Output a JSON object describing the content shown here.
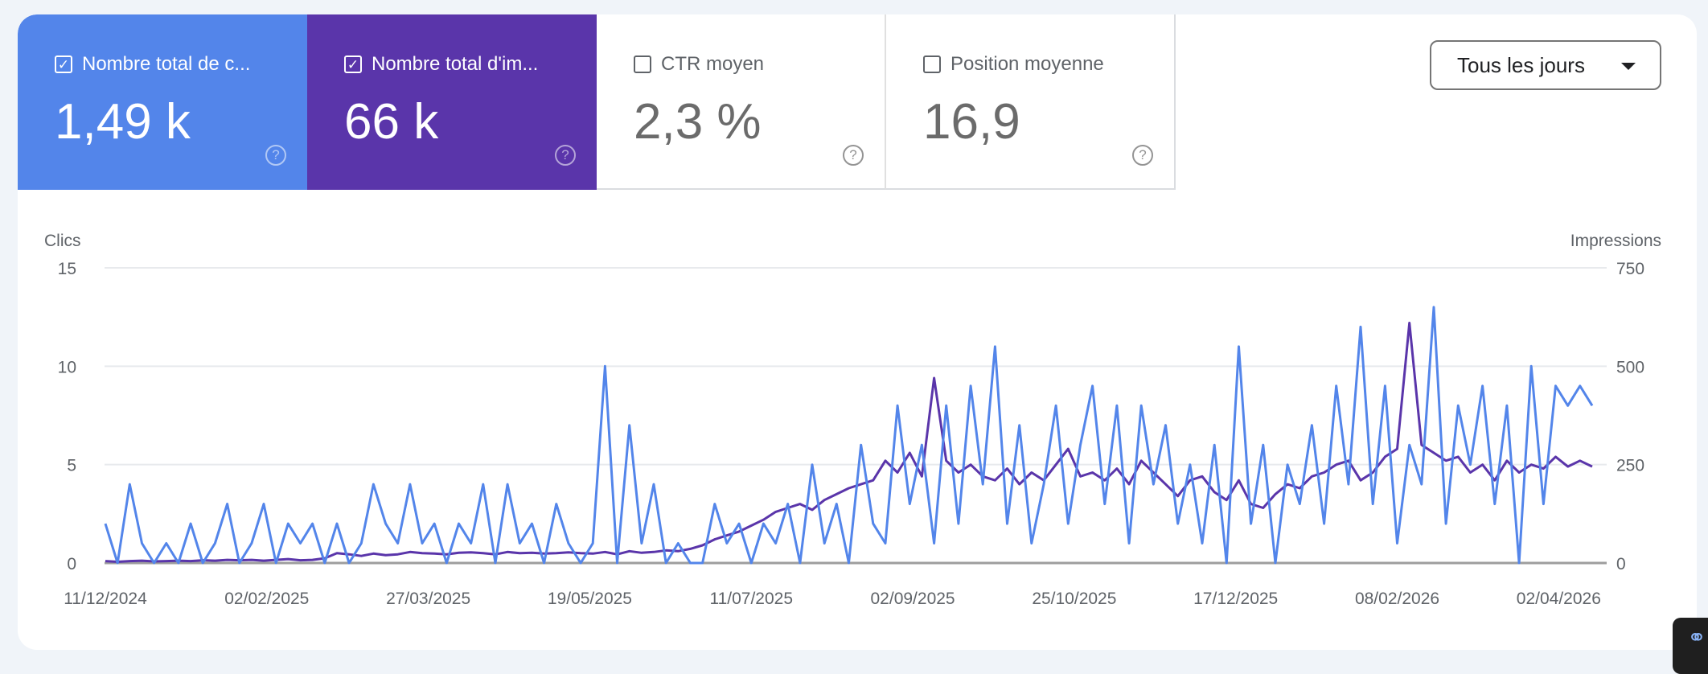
{
  "metrics": [
    {
      "label": "Nombre total de c...",
      "value": "1,49 k",
      "checked": true,
      "color": "#5385ea"
    },
    {
      "label": "Nombre total d'im...",
      "value": "66 k",
      "checked": true,
      "color": "#5a35aa"
    },
    {
      "label": "CTR moyen",
      "value": "2,3 %",
      "checked": false
    },
    {
      "label": "Position moyenne",
      "value": "16,9",
      "checked": false
    }
  ],
  "icons": {
    "checkbox_checked": "checkbox-checked-icon",
    "checkbox": "checkbox-empty-icon",
    "help": "help-circle-icon",
    "dropdown": "caret-down-icon",
    "widget": "link-icon"
  },
  "date_filter": {
    "selected": "Tous les jours"
  },
  "chart_data": {
    "type": "line",
    "ylabel_left": "Clics",
    "ylabel_right": "Impressions",
    "ylim_left": [
      0,
      15
    ],
    "ylim_right": [
      0,
      750
    ],
    "yticks_left": [
      "0",
      "5",
      "10",
      "15"
    ],
    "yticks_right": [
      "0",
      "250",
      "500",
      "750"
    ],
    "xticks": [
      "11/12/2024",
      "02/02/2025",
      "27/03/2025",
      "19/05/2025",
      "11/07/2025",
      "02/09/2025",
      "25/10/2025",
      "17/12/2025",
      "08/02/2026",
      "02/04/2026"
    ],
    "xlim": [
      "11/12/2024",
      "13/04/2026"
    ],
    "grid": true,
    "legend": "none",
    "x": [
      "11/12/2024",
      "15/12/2024",
      "19/12/2024",
      "23/12/2024",
      "27/12/2024",
      "31/12/2024",
      "04/01/2025",
      "08/01/2025",
      "12/01/2025",
      "16/01/2025",
      "20/01/2025",
      "24/01/2025",
      "28/01/2025",
      "01/02/2025",
      "05/02/2025",
      "09/02/2025",
      "13/02/2025",
      "17/02/2025",
      "21/02/2025",
      "25/02/2025",
      "01/03/2025",
      "05/03/2025",
      "09/03/2025",
      "13/03/2025",
      "17/03/2025",
      "21/03/2025",
      "25/03/2025",
      "29/03/2025",
      "02/04/2025",
      "06/04/2025",
      "10/04/2025",
      "14/04/2025",
      "18/04/2025",
      "22/04/2025",
      "26/04/2025",
      "30/04/2025",
      "04/05/2025",
      "08/05/2025",
      "12/05/2025",
      "16/05/2025",
      "20/05/2025",
      "24/05/2025",
      "28/05/2025",
      "01/06/2025",
      "05/06/2025",
      "09/06/2025",
      "13/06/2025",
      "17/06/2025",
      "21/06/2025",
      "25/06/2025",
      "29/06/2025",
      "03/07/2025",
      "07/07/2025",
      "11/07/2025",
      "15/07/2025",
      "19/07/2025",
      "23/07/2025",
      "27/07/2025",
      "31/07/2025",
      "04/08/2025",
      "08/08/2025",
      "12/08/2025",
      "16/08/2025",
      "20/08/2025",
      "24/08/2025",
      "28/08/2025",
      "01/09/2025",
      "05/09/2025",
      "09/09/2025",
      "13/09/2025",
      "17/09/2025",
      "21/09/2025",
      "25/09/2025",
      "29/09/2025",
      "03/10/2025",
      "07/10/2025",
      "11/10/2025",
      "15/10/2025",
      "19/10/2025",
      "23/10/2025",
      "27/10/2025",
      "31/10/2025",
      "04/11/2025",
      "08/11/2025",
      "12/11/2025",
      "16/11/2025",
      "20/11/2025",
      "24/11/2025",
      "28/11/2025",
      "02/12/2025",
      "06/12/2025",
      "10/12/2025",
      "14/12/2025",
      "18/12/2025",
      "22/12/2025",
      "26/12/2025",
      "30/12/2025",
      "03/01/2026",
      "07/01/2026",
      "11/01/2026",
      "15/01/2026",
      "19/01/2026",
      "23/01/2026",
      "27/01/2026",
      "31/01/2026",
      "04/02/2026",
      "08/02/2026",
      "12/02/2026",
      "16/02/2026",
      "20/02/2026",
      "24/02/2026",
      "28/02/2026",
      "04/03/2026",
      "08/03/2026",
      "12/03/2026",
      "16/03/2026",
      "20/03/2026",
      "24/03/2026",
      "28/03/2026",
      "01/04/2026",
      "05/04/2026",
      "09/04/2026",
      "13/04/2026"
    ],
    "series": [
      {
        "name": "Clics",
        "axis": "left",
        "color": "#5385ea",
        "values": [
          2,
          0,
          4,
          1,
          0,
          1,
          0,
          2,
          0,
          1,
          3,
          0,
          1,
          3,
          0,
          2,
          1,
          2,
          0,
          2,
          0,
          1,
          4,
          2,
          1,
          4,
          1,
          2,
          0,
          2,
          1,
          4,
          0,
          4,
          1,
          2,
          0,
          3,
          1,
          0,
          1,
          10,
          0,
          7,
          1,
          4,
          0,
          1,
          0,
          0,
          3,
          1,
          2,
          0,
          2,
          1,
          3,
          0,
          5,
          1,
          3,
          0,
          6,
          2,
          1,
          8,
          3,
          6,
          1,
          8,
          2,
          9,
          4,
          11,
          2,
          7,
          1,
          4,
          8,
          2,
          6,
          9,
          3,
          8,
          1,
          8,
          4,
          7,
          2,
          5,
          1,
          6,
          0,
          11,
          2,
          6,
          0,
          5,
          3,
          7,
          2,
          9,
          4,
          12,
          3,
          9,
          1,
          6,
          4,
          13,
          2,
          8,
          5,
          9,
          3,
          8,
          0,
          10,
          3,
          9,
          8,
          9,
          8
        ]
      },
      {
        "name": "Impressions",
        "axis": "right",
        "color": "#5a35aa",
        "values": [
          5,
          3,
          5,
          6,
          4,
          5,
          6,
          5,
          7,
          6,
          8,
          7,
          8,
          6,
          8,
          10,
          7,
          8,
          12,
          25,
          22,
          18,
          24,
          20,
          22,
          28,
          25,
          24,
          22,
          26,
          27,
          25,
          22,
          28,
          25,
          26,
          24,
          25,
          27,
          25,
          24,
          28,
          22,
          30,
          26,
          28,
          32,
          30,
          36,
          45,
          60,
          70,
          80,
          95,
          110,
          130,
          140,
          150,
          135,
          160,
          175,
          190,
          200,
          210,
          260,
          230,
          280,
          220,
          470,
          260,
          230,
          250,
          220,
          210,
          240,
          200,
          230,
          210,
          250,
          290,
          220,
          230,
          210,
          240,
          200,
          260,
          230,
          200,
          170,
          210,
          220,
          180,
          160,
          210,
          150,
          140,
          175,
          200,
          190,
          220,
          230,
          250,
          260,
          210,
          230,
          270,
          290,
          610,
          300,
          280,
          260,
          270,
          230,
          250,
          210,
          260,
          230,
          250,
          240,
          270,
          245,
          260,
          245
        ]
      }
    ]
  }
}
